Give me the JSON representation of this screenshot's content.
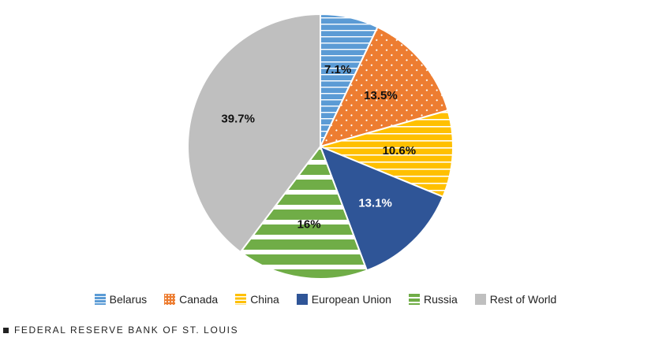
{
  "chart_data": {
    "type": "pie",
    "slices": [
      {
        "name": "Belarus",
        "value": 7.1,
        "label": "7.1%",
        "color": "#5b9bd5",
        "pattern": "horizontal-lines",
        "label_color": "#111111"
      },
      {
        "name": "Canada",
        "value": 13.5,
        "label": "13.5%",
        "color": "#ed7d31",
        "pattern": "dots",
        "label_color": "#111111"
      },
      {
        "name": "China",
        "value": 10.6,
        "label": "10.6%",
        "color": "#ffc000",
        "pattern": "horizontal-lines",
        "label_color": "#111111"
      },
      {
        "name": "European Union",
        "value": 13.1,
        "label": "13.1%",
        "color": "#2f5597",
        "pattern": "solid",
        "label_color": "#ffffff"
      },
      {
        "name": "Russia",
        "value": 16.0,
        "label": "16%",
        "color": "#70ad47",
        "pattern": "wide-horizontal-lines",
        "label_color": "#111111"
      },
      {
        "name": "Rest of World",
        "value": 39.7,
        "label": "39.7%",
        "color": "#bfbfbf",
        "pattern": "solid",
        "label_color": "#111111"
      }
    ],
    "legend_position": "bottom",
    "start_angle": "12 o'clock, clockwise"
  },
  "footer": {
    "source": "FEDERAL RESERVE BANK OF ST. LOUIS"
  }
}
